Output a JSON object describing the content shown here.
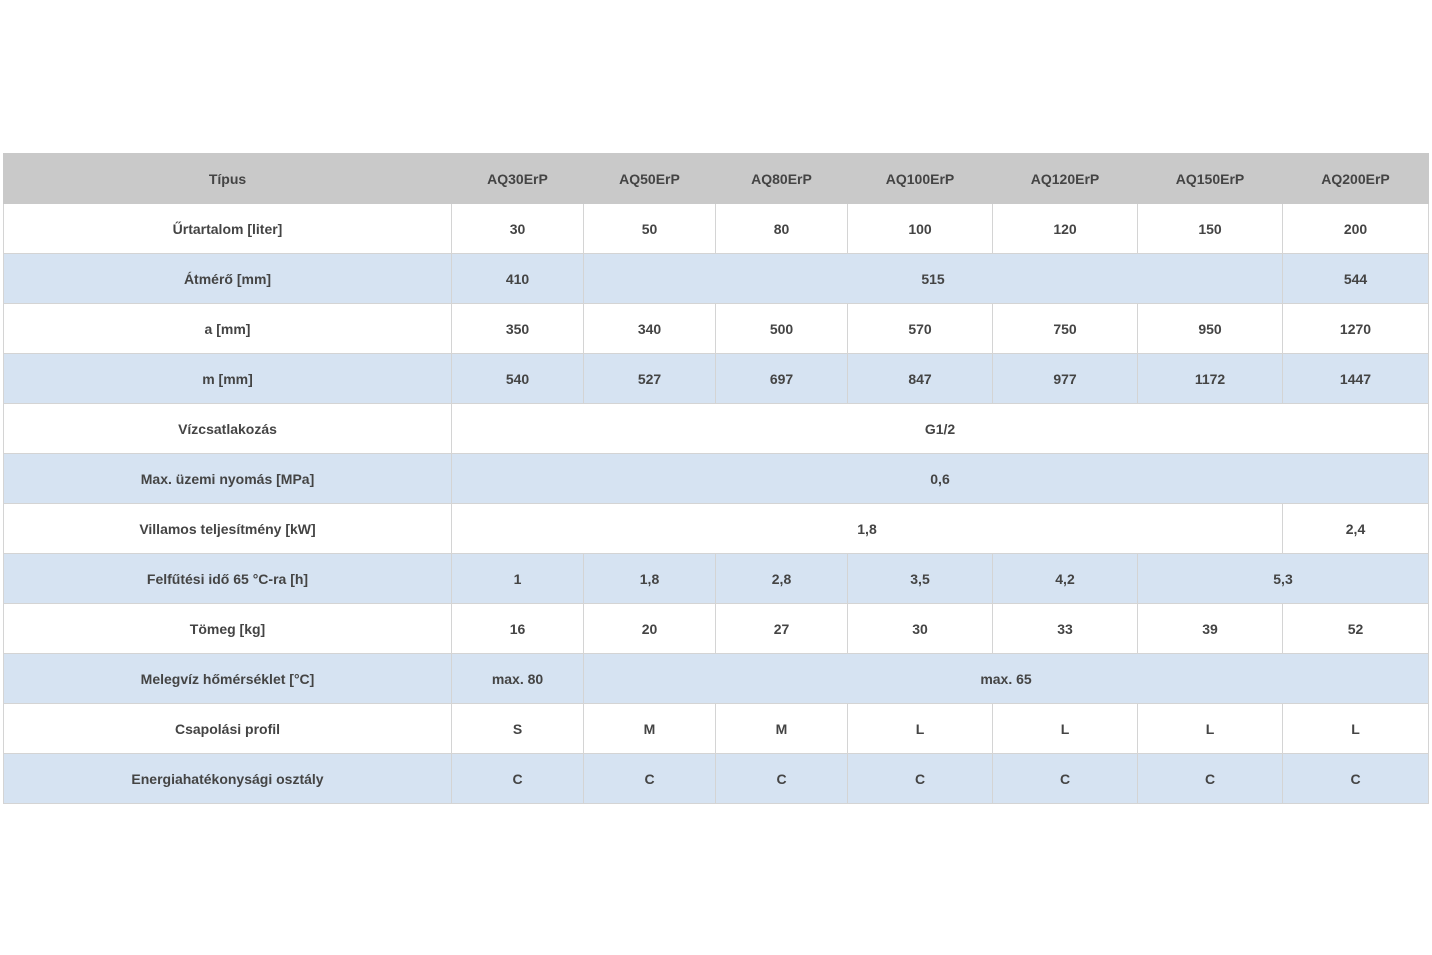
{
  "table": {
    "header": [
      "Típus",
      "AQ30ErP",
      "AQ50ErP",
      "AQ80ErP",
      "AQ100ErP",
      "AQ120ErP",
      "AQ150ErP",
      "AQ200ErP"
    ],
    "rows": [
      {
        "label": "Űrtartalom [liter]",
        "cells": [
          "30",
          "50",
          "80",
          "100",
          "120",
          "150",
          "200"
        ]
      },
      {
        "label": "Átmérő [mm]",
        "cells": [
          "410",
          "515",
          "544"
        ]
      },
      {
        "label": "a [mm]",
        "cells": [
          "350",
          "340",
          "500",
          "570",
          "750",
          "950",
          "1270"
        ]
      },
      {
        "label": "m [mm]",
        "cells": [
          "540",
          "527",
          "697",
          "847",
          "977",
          "1172",
          "1447"
        ]
      },
      {
        "label": "Vízcsatlakozás",
        "cells": [
          "G1/2"
        ]
      },
      {
        "label": "Max. üzemi nyomás [MPa]",
        "cells": [
          "0,6"
        ]
      },
      {
        "label": "Villamos teljesítmény [kW]",
        "cells": [
          "1,8",
          "2,4"
        ]
      },
      {
        "label": "Felfűtési idő 65 °C-ra [h]",
        "cells": [
          "1",
          "1,8",
          "2,8",
          "3,5",
          "4,2",
          "5,3"
        ]
      },
      {
        "label": "Tömeg [kg]",
        "cells": [
          "16",
          "20",
          "27",
          "30",
          "33",
          "39",
          "52"
        ]
      },
      {
        "label": "Melegvíz hőmérséklet [°C]",
        "cells": [
          "max. 80",
          "max. 65"
        ]
      },
      {
        "label": "Csapolási profil",
        "cells": [
          "S",
          "M",
          "M",
          "L",
          "L",
          "L",
          "L"
        ]
      },
      {
        "label": "Energiahatékonysági osztály",
        "cells": [
          "C",
          "C",
          "C",
          "C",
          "C",
          "C",
          "C"
        ]
      }
    ]
  },
  "colors": {
    "header_bg": "#c9c9c9",
    "row_alt_bg": "#d6e3f2",
    "text": "#444444"
  }
}
